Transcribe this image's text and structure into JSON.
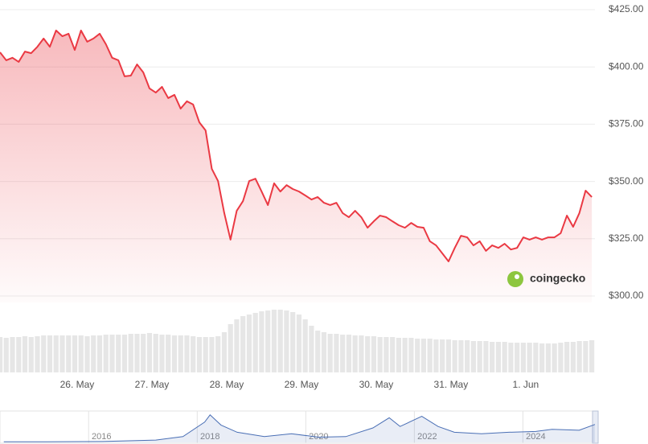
{
  "chart_data": {
    "type": "line",
    "color": "#ea3943",
    "categories": [
      null,
      null,
      null,
      null,
      null,
      null,
      null,
      null,
      null,
      null,
      null,
      null,
      "26. May",
      null,
      null,
      null,
      null,
      null,
      null,
      null,
      null,
      null,
      null,
      null,
      "27. May",
      null,
      null,
      null,
      null,
      null,
      null,
      null,
      null,
      null,
      null,
      null,
      "28. May",
      null,
      null,
      null,
      null,
      null,
      null,
      null,
      null,
      null,
      null,
      null,
      "29. May",
      null,
      null,
      null,
      null,
      null,
      null,
      null,
      null,
      null,
      null,
      null,
      "30. May",
      null,
      null,
      null,
      null,
      null,
      null,
      null,
      null,
      null,
      null,
      null,
      "31. May",
      null,
      null,
      null,
      null,
      null,
      null,
      null,
      null,
      null,
      null,
      null,
      "1. Jun",
      null,
      null,
      null,
      null,
      null,
      null,
      null,
      null,
      null,
      null,
      null
    ],
    "values": [
      406.4,
      402.9,
      404,
      402.2,
      406.7,
      406,
      408.8,
      412.4,
      408.8,
      415.9,
      413.4,
      414.5,
      407.4,
      415.9,
      411,
      412.4,
      414.5,
      409.9,
      404,
      402.9,
      395.9,
      396.2,
      401.1,
      397.6,
      390.6,
      388.8,
      391.3,
      386.4,
      387.8,
      381.8,
      385,
      383.6,
      375.8,
      372.3,
      355.5,
      350.2,
      336.2,
      324.6,
      337.2,
      341.4,
      350.2,
      351.2,
      345.6,
      339.7,
      349.2,
      345.6,
      348.4,
      346.7,
      345.6,
      343.9,
      342.1,
      343.2,
      340.7,
      339.7,
      340.7,
      336.2,
      334.4,
      337.2,
      334.4,
      329.8,
      332.6,
      335.1,
      334.4,
      332.6,
      330.9,
      329.8,
      331.9,
      330.2,
      329.8,
      323.9,
      322.1,
      318.6,
      315.1,
      321,
      326.3,
      325.6,
      322.1,
      323.9,
      319.7,
      322.1,
      321,
      322.8,
      320.3,
      321,
      325.6,
      324.6,
      325.6,
      324.6,
      325.6,
      325.6,
      327.4,
      335.1,
      330.2,
      336.2,
      346,
      343.2
    ],
    "volumes": [
      44,
      43,
      44,
      44,
      45,
      44,
      45,
      46,
      46,
      46,
      46,
      46,
      46,
      46,
      45,
      46,
      46,
      47,
      47,
      47,
      47,
      48,
      48,
      48,
      49,
      48,
      47,
      47,
      46,
      46,
      46,
      45,
      44,
      44,
      44,
      45,
      50,
      60,
      66,
      70,
      72,
      74,
      76,
      77,
      78,
      78,
      77,
      75,
      72,
      66,
      58,
      52,
      50,
      48,
      48,
      47,
      47,
      46,
      46,
      45,
      45,
      44,
      44,
      44,
      43,
      43,
      43,
      42,
      42,
      42,
      41,
      41,
      41,
      40,
      40,
      40,
      39,
      39,
      39,
      38,
      38,
      38,
      37,
      37,
      37,
      37,
      37,
      36,
      36,
      36,
      37,
      38,
      38,
      39,
      39,
      40
    ],
    "volume_ylim": [
      0,
      100
    ],
    "ylim": [
      300,
      425
    ],
    "yticks": [
      {
        "value": 300,
        "label": "$300.00"
      },
      {
        "value": 325,
        "label": "$325.00"
      },
      {
        "value": 350,
        "label": "$350.00"
      },
      {
        "value": 375,
        "label": "$375.00"
      },
      {
        "value": 400,
        "label": "$400.00"
      },
      {
        "value": 425,
        "label": "$425.00"
      }
    ],
    "grid": true,
    "watermark": "coingecko",
    "navigator": {
      "color": "#4a6fb5",
      "x": [
        2014.2,
        2015,
        2016,
        2017,
        2017.5,
        2017.9,
        2018,
        2018.2,
        2018.5,
        2019,
        2019.5,
        2020,
        2020.5,
        2021,
        2021.3,
        2021.5,
        2021.9,
        2022.2,
        2022.5,
        2023,
        2023.5,
        2024,
        2024.3,
        2024.8,
        2025.09
      ],
      "values": [
        2,
        2,
        3,
        8,
        20,
        70,
        95,
        60,
        35,
        20,
        30,
        18,
        20,
        50,
        85,
        55,
        90,
        55,
        35,
        30,
        35,
        38,
        45,
        42,
        62
      ],
      "xlim": [
        2014.13,
        2025.09
      ],
      "ylim": [
        0,
        100
      ],
      "xticks": [
        2016,
        2018,
        2020,
        2022,
        2024
      ]
    }
  }
}
